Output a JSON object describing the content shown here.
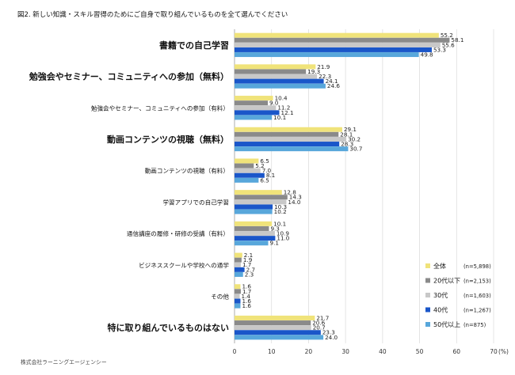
{
  "chart_data": {
    "type": "bar",
    "orientation": "horizontal",
    "title": "図2. 新しい知識・スキル習得のためにご自身で取り組んでいるものを全て選んでください",
    "x_unit_label": "(%)",
    "xlim": [
      0,
      70
    ],
    "x_ticks": [
      0,
      10,
      20,
      30,
      40,
      50,
      60,
      70
    ],
    "grid": true,
    "legend_position": "bottom-right",
    "categories": [
      {
        "label": "書籍での自己学習",
        "emphasis": true
      },
      {
        "label": "勉強会やセミナー、コミュニティへの参加（無料）",
        "emphasis": true
      },
      {
        "label": "勉強会やセミナー、コミュニティへの参加（有料）",
        "emphasis": false
      },
      {
        "label": "動画コンテンツの視聴（無料）",
        "emphasis": true
      },
      {
        "label": "動画コンテンツの視聴（有料）",
        "emphasis": false
      },
      {
        "label": "学習アプリでの自己学習",
        "emphasis": false
      },
      {
        "label": "通信講座の履修・研修の受講（有料）",
        "emphasis": false
      },
      {
        "label": "ビジネススクールや学校への通学",
        "emphasis": false
      },
      {
        "label": "その他",
        "emphasis": false
      },
      {
        "label": "特に取り組んでいるものはない",
        "emphasis": true
      }
    ],
    "series": [
      {
        "name": "全体",
        "n": "(n=5,898)",
        "color": "#f0e37a",
        "values": [
          55.2,
          21.9,
          10.4,
          29.1,
          6.5,
          12.8,
          10.1,
          2.1,
          1.6,
          21.7
        ]
      },
      {
        "name": "20代以下",
        "n": "(n=2,153)",
        "color": "#8a8a8a",
        "values": [
          58.1,
          19.3,
          9.0,
          28.1,
          5.2,
          14.3,
          9.3,
          1.9,
          1.7,
          20.6
        ]
      },
      {
        "name": "30代",
        "n": "(n=1,603)",
        "color": "#c8c8c8",
        "values": [
          55.6,
          22.3,
          11.2,
          30.2,
          7.0,
          14.0,
          10.9,
          1.7,
          1.4,
          20.7
        ]
      },
      {
        "name": "40代",
        "n": "(n=1,267)",
        "color": "#1a56c9",
        "values": [
          53.3,
          24.1,
          12.1,
          28.3,
          8.1,
          10.3,
          11.0,
          2.7,
          1.6,
          23.3
        ]
      },
      {
        "name": "50代以上",
        "n": "(n=875)",
        "color": "#58a7db",
        "values": [
          49.8,
          24.6,
          10.1,
          30.7,
          6.5,
          10.2,
          9.1,
          2.3,
          1.6,
          24.0
        ]
      }
    ]
  },
  "footer": {
    "source": "株式会社ラーニングエージェンシー"
  }
}
